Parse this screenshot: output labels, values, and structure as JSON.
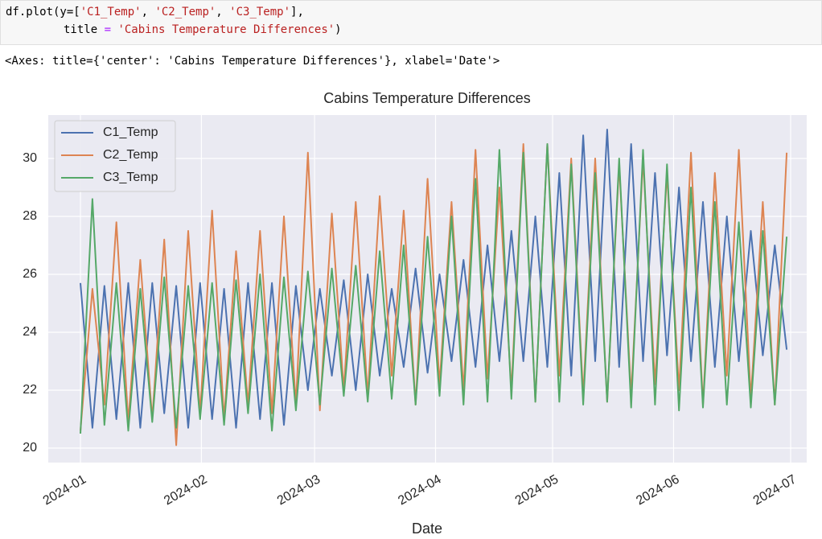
{
  "code": {
    "lines": [
      [
        "df.plot(y=[",
        "'C1_Temp'",
        ", ",
        "'C2_Temp'",
        ", ",
        "'C3_Temp'",
        "],"
      ],
      [
        "title",
        " = ",
        "'Cabins Temperature Differences'",
        ")"
      ]
    ]
  },
  "output": "<Axes: title={'center': 'Cabins Temperature Differences'}, xlabel='Date'>",
  "chart_data": {
    "type": "line",
    "title": "Cabins Temperature Differences",
    "x_label": "Date",
    "xlim": [
      "2024-01",
      "2024-07"
    ],
    "xticks": [
      "2024-01",
      "2024-02",
      "2024-03",
      "2024-04",
      "2024-05",
      "2024-06",
      "2024-07"
    ],
    "ylim": [
      19.5,
      31.5
    ],
    "yticks": [
      20,
      22,
      24,
      26,
      28,
      30
    ],
    "grid": true,
    "legend": "upper left",
    "series": [
      {
        "name": "C1_Temp",
        "color": "#4c72b0",
        "values": [
          25.7,
          20.7,
          25.6,
          21,
          25.7,
          20.7,
          25.7,
          21.2,
          25.6,
          20.7,
          25.7,
          21,
          25.5,
          20.7,
          25.7,
          21,
          25.7,
          20.8,
          25.6,
          22,
          25.5,
          22.5,
          25.8,
          22,
          26,
          22.5,
          25.5,
          22.8,
          26.2,
          22.6,
          26,
          23,
          26.5,
          22.8,
          27,
          23,
          27.5,
          23,
          28,
          22.8,
          29.5,
          22.5,
          30.8,
          23,
          31,
          22.8,
          30.5,
          23,
          29.5,
          23.2,
          29,
          23,
          28.5,
          22.8,
          28,
          23,
          27.5,
          23.2,
          27,
          23.4
        ]
      },
      {
        "name": "C2_Temp",
        "color": "#dd8452",
        "values": [
          20.6,
          25.5,
          21.5,
          27.8,
          20.9,
          26.5,
          21,
          27.2,
          20.1,
          27.5,
          21.2,
          28.2,
          21,
          26.8,
          21.5,
          27.5,
          21.2,
          28,
          21.5,
          30.2,
          21.3,
          28.1,
          22,
          28.5,
          21.8,
          28.7,
          22.5,
          28.2,
          21.5,
          29.3,
          22.2,
          28.5,
          22,
          30.3,
          22.4,
          29,
          22,
          30.5,
          21.6,
          30.5,
          22.5,
          30,
          21.8,
          30,
          21.6,
          29.8,
          21.8,
          30,
          22.2,
          29.5,
          22,
          30.2,
          21.5,
          29.5,
          22.5,
          30.3,
          21.7,
          28.5,
          21.5,
          30.2
        ]
      },
      {
        "name": "C3_Temp",
        "color": "#55a868",
        "values": [
          20.5,
          28.6,
          20.8,
          25.7,
          20.6,
          25.5,
          20.9,
          25.9,
          20.7,
          25.6,
          21,
          25.7,
          20.8,
          25.8,
          21.2,
          26,
          20.6,
          25.9,
          21.3,
          26.1,
          21.5,
          26.2,
          21.8,
          26.3,
          21.6,
          26.8,
          21.7,
          27,
          21.5,
          27.3,
          21.8,
          28,
          21.5,
          29.3,
          21.6,
          30.3,
          21.7,
          30.2,
          21.6,
          30.5,
          21.6,
          29.8,
          21.5,
          29.5,
          21.6,
          30,
          21.4,
          30.3,
          21.5,
          29.8,
          21.3,
          29,
          21.4,
          28.5,
          21.5,
          27.8,
          21.4,
          27.5,
          21.5,
          27.3
        ]
      }
    ]
  }
}
